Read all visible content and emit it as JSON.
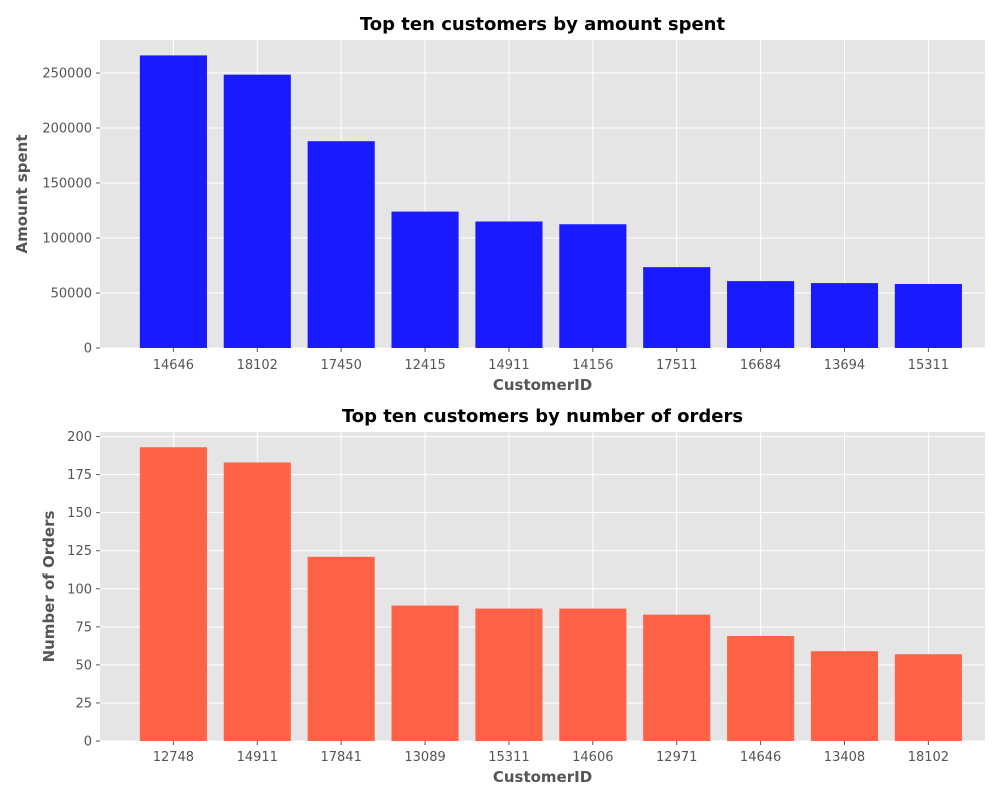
{
  "chart_data": [
    {
      "type": "bar",
      "title": "Top ten customers by amount spent",
      "xlabel": "CustomerID",
      "ylabel": "Amount spent",
      "categories": [
        "14646",
        "18102",
        "17450",
        "12415",
        "14911",
        "14156",
        "17511",
        "16684",
        "13694",
        "15311"
      ],
      "values": [
        266000,
        248500,
        188000,
        124000,
        115000,
        112500,
        73500,
        60800,
        59000,
        58200
      ],
      "ylim": [
        0,
        280000
      ],
      "yticks": [
        0,
        50000,
        100000,
        150000,
        200000,
        250000
      ],
      "ytick_labels": [
        "0",
        "50000",
        "100000",
        "150000",
        "200000",
        "250000"
      ],
      "bar_color": "#1a1aff",
      "grid": true
    },
    {
      "type": "bar",
      "title": "Top ten customers by number of orders",
      "xlabel": "CustomerID",
      "ylabel": "Number of Orders",
      "categories": [
        "12748",
        "14911",
        "17841",
        "13089",
        "15311",
        "14606",
        "12971",
        "14646",
        "13408",
        "18102"
      ],
      "values": [
        193,
        183,
        121,
        89,
        87,
        87,
        83,
        69,
        59,
        57
      ],
      "ylim": [
        0,
        203
      ],
      "yticks": [
        0,
        25,
        50,
        75,
        100,
        125,
        150,
        175,
        200
      ],
      "ytick_labels": [
        "0",
        "25",
        "50",
        "75",
        "100",
        "125",
        "150",
        "175",
        "200"
      ],
      "bar_color": "#ff6347",
      "grid": true
    }
  ]
}
